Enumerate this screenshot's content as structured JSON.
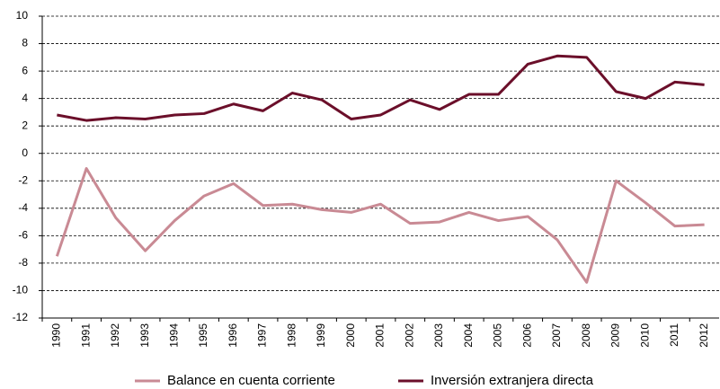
{
  "chart_data": {
    "type": "line",
    "categories": [
      "1990",
      "1991",
      "1992",
      "1993",
      "1994",
      "1995",
      "1996",
      "1997",
      "1998",
      "1999",
      "2000",
      "2001",
      "2002",
      "2003",
      "2004",
      "2005",
      "2006",
      "2007",
      "2008",
      "2009",
      "2010",
      "2011",
      "2012"
    ],
    "series": [
      {
        "name": "Balance en cuenta corriente",
        "color": "#c98a94",
        "values": [
          -7.5,
          -1.1,
          -4.7,
          -7.1,
          -4.9,
          -3.1,
          -2.2,
          -3.8,
          -3.7,
          -4.1,
          -4.3,
          -3.7,
          -5.1,
          -5.0,
          -4.3,
          -4.9,
          -4.6,
          -6.3,
          -9.4,
          -2.0,
          -3.6,
          -5.3,
          -5.2
        ]
      },
      {
        "name": "Inversión extranjera directa",
        "color": "#6b0f2a",
        "values": [
          2.8,
          2.4,
          2.6,
          2.5,
          2.8,
          2.9,
          3.6,
          3.1,
          4.4,
          3.9,
          2.5,
          2.8,
          3.9,
          3.2,
          4.3,
          4.3,
          6.5,
          7.1,
          7.0,
          4.5,
          4.0,
          5.2,
          5.0
        ]
      }
    ],
    "ylim": [
      -12,
      10
    ],
    "yticks": [
      -12,
      -10,
      -8,
      -6,
      -4,
      -2,
      0,
      2,
      4,
      6,
      8,
      10
    ],
    "grid": true,
    "legend": "bottom"
  }
}
